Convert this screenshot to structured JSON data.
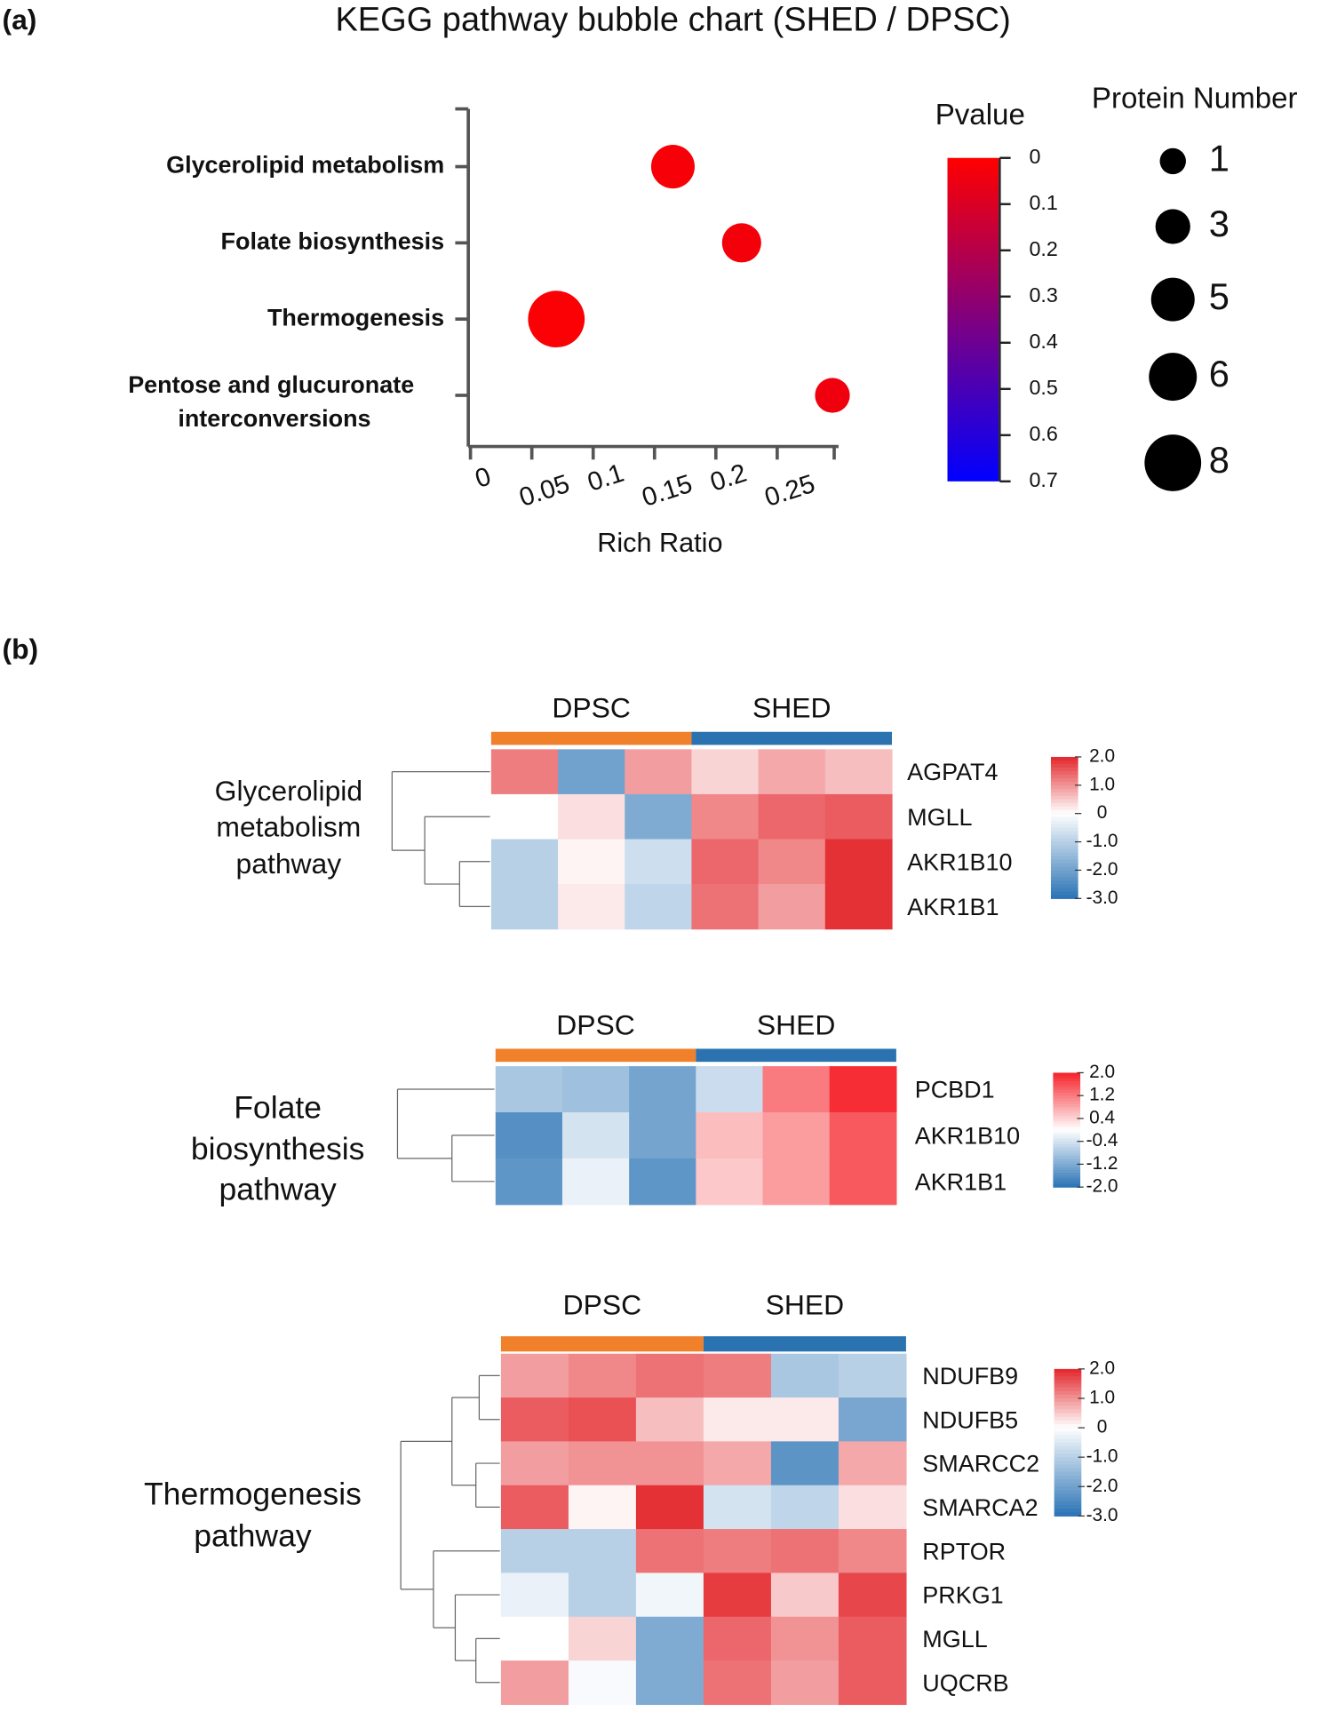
{
  "panels": [
    "(a)",
    "(b)"
  ],
  "chart_data": [
    {
      "type": "bubble",
      "title": "KEGG pathway bubble chart (SHED / DPSC)",
      "categories": [
        "Glycerolipid metabolism",
        "Folate biosynthesis",
        "Thermogenesis",
        "Pentose and glucuronate interconversions"
      ],
      "x": [
        0.165,
        0.221,
        0.07,
        0.295
      ],
      "sizes": [
        5,
        4,
        8,
        3
      ],
      "pvalues": [
        0.02,
        0.03,
        0.01,
        0.04
      ],
      "x_label": "Rich Ratio",
      "xlim": [
        0,
        0.3
      ],
      "xticks": [
        0,
        0.05,
        0.1,
        0.15,
        0.2,
        0.25
      ],
      "color_title": "Pvalue",
      "clim": [
        0,
        0.7
      ],
      "cticks": [
        0,
        0.1,
        0.2,
        0.3,
        0.4,
        0.5,
        0.6,
        0.7
      ],
      "colors": [
        "#ff0000",
        "#0000ff"
      ],
      "size_title": "Protein Number",
      "size_legend": [
        1,
        3,
        5,
        6,
        8
      ],
      "size_color": "#000000"
    },
    {
      "type": "heatmap",
      "row_label": [
        "Glycerolipid",
        "metabolism",
        "pathway"
      ],
      "groups": [
        {
          "name": "DPSC",
          "color": "#f0812a"
        },
        {
          "name": "SHED",
          "color": "#2a73b0"
        }
      ],
      "rows": [
        "AGPAT4",
        "MGLL",
        "AKR1B10",
        "AKR1B1"
      ],
      "values": [
        [
          1.2,
          -2.0,
          0.9,
          0.4,
          0.8,
          0.6
        ],
        [
          0,
          0.3,
          -1.8,
          1.1,
          1.4,
          1.5
        ],
        [
          -1.0,
          0.1,
          -0.7,
          1.4,
          1.1,
          1.9
        ],
        [
          -1.0,
          0.2,
          -0.9,
          1.3,
          0.9,
          1.9
        ]
      ],
      "clim": [
        -3,
        2
      ],
      "cticks": [
        {
          "value": 2,
          "label": "2.0"
        },
        {
          "value": 1,
          "label": "1.0"
        },
        0,
        {
          "value": -1,
          "label": "-1.0"
        },
        {
          "value": -2,
          "label": "-2.0"
        },
        {
          "value": -3,
          "label": "-3.0"
        }
      ],
      "colors": [
        "#2a73b5",
        "#ffffff",
        "#e3262b"
      ]
    },
    {
      "type": "heatmap",
      "row_label": [
        "Folate",
        "biosynthesis",
        "pathway"
      ],
      "groups": [
        {
          "name": "DPSC",
          "color": "#f0812a"
        },
        {
          "name": "SHED",
          "color": "#2a73b0"
        }
      ],
      "rows": [
        "PCBD1",
        "AKR1B10",
        "AKR1B1"
      ],
      "values": [
        [
          -0.8,
          -0.9,
          -1.3,
          -0.5,
          1.2,
          1.9
        ],
        [
          -1.6,
          -0.4,
          -1.3,
          0.6,
          0.9,
          1.5
        ],
        [
          -1.5,
          -0.2,
          -1.5,
          0.5,
          0.9,
          1.5
        ]
      ],
      "clim": [
        -2,
        2
      ],
      "cticks": [
        {
          "value": 2,
          "label": "2.0"
        },
        {
          "value": 1.2,
          "label": "1.2"
        },
        0.4,
        -0.4,
        {
          "value": -1.2,
          "label": "-1.2"
        },
        {
          "value": -2,
          "label": "-2.0"
        }
      ],
      "colors": [
        "#2a73b5",
        "#ffffff",
        "#f5222a"
      ]
    },
    {
      "type": "heatmap",
      "row_label": [
        "Thermogenesis",
        "pathway"
      ],
      "groups": [
        {
          "name": "DPSC",
          "color": "#f0812a"
        },
        {
          "name": "SHED",
          "color": "#2a73b0"
        }
      ],
      "rows": [
        "NDUFB9",
        "NDUFB5",
        "SMARCC2",
        "SMARCA2",
        "RPTOR",
        "PRKG1",
        "MGLL",
        "UQCRB"
      ],
      "values": [
        [
          0.9,
          1.1,
          1.3,
          1.2,
          -1.2,
          -1.0
        ],
        [
          1.5,
          1.6,
          0.6,
          0.2,
          0.2,
          -1.9
        ],
        [
          0.9,
          1.0,
          1.0,
          0.8,
          -2.3,
          0.8
        ],
        [
          1.5,
          0.1,
          1.9,
          -0.6,
          -0.9,
          0.3
        ],
        [
          -1.0,
          -1.0,
          1.3,
          1.2,
          1.3,
          1.1
        ],
        [
          -0.3,
          -1.0,
          -0.2,
          1.8,
          0.5,
          1.7
        ],
        [
          0,
          0.4,
          -1.8,
          1.4,
          1.0,
          1.5
        ],
        [
          0.9,
          -0.1,
          -1.8,
          1.3,
          0.9,
          1.5
        ]
      ],
      "clim": [
        -3,
        2
      ],
      "cticks": [
        {
          "value": 2,
          "label": "2.0"
        },
        {
          "value": 1,
          "label": "1.0"
        },
        0,
        {
          "value": -1,
          "label": "-1.0"
        },
        {
          "value": -2,
          "label": "-2.0"
        },
        {
          "value": -3,
          "label": "-3.0"
        }
      ],
      "colors": [
        "#2a73b5",
        "#ffffff",
        "#e3262b"
      ]
    }
  ]
}
